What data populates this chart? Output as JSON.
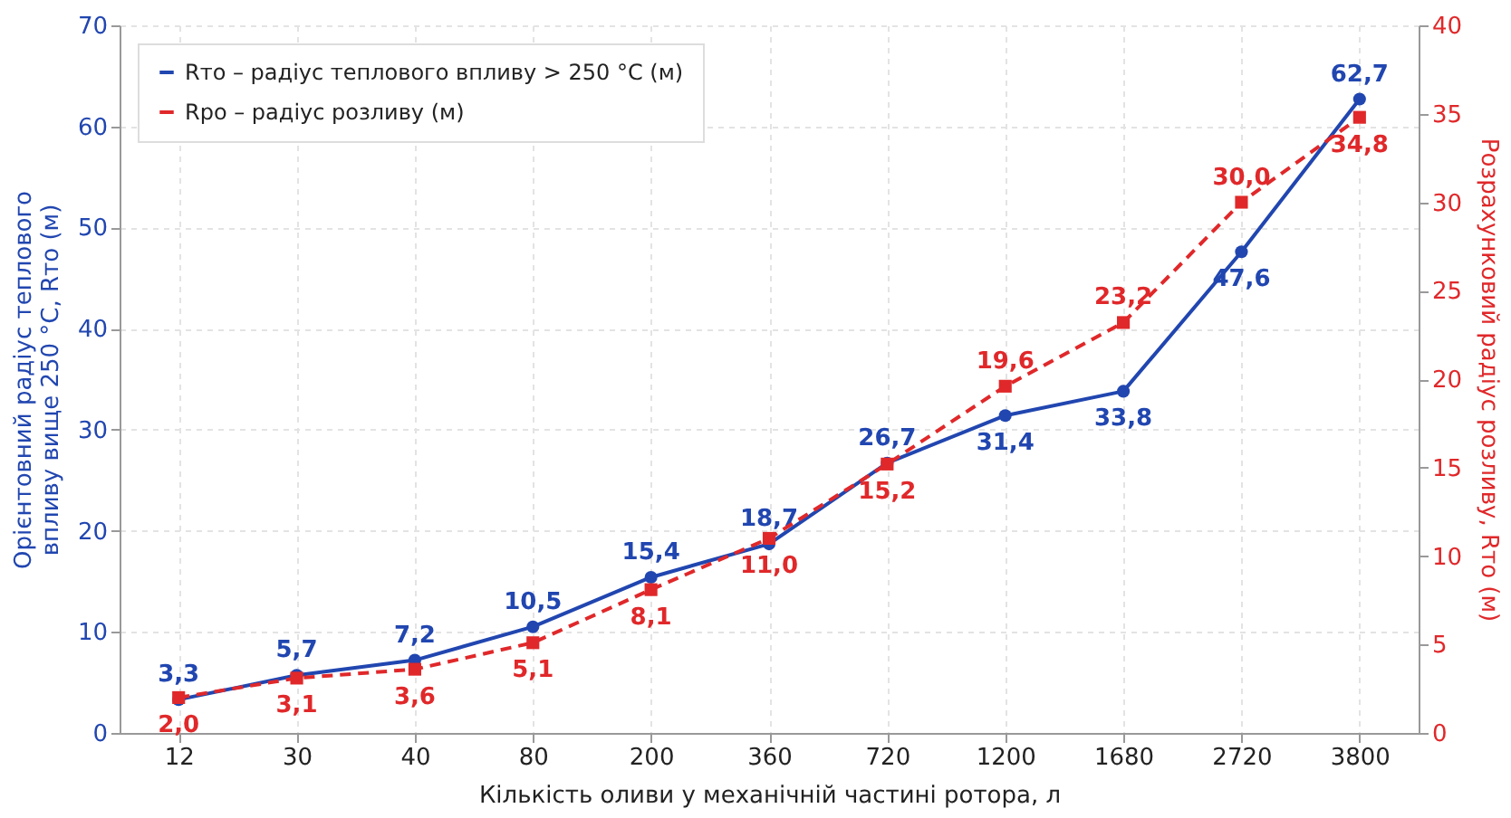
{
  "chart_data": {
    "type": "line",
    "categories": [
      "12",
      "30",
      "40",
      "80",
      "200",
      "360",
      "720",
      "1200",
      "1680",
      "2720",
      "3800"
    ],
    "series": [
      {
        "name": "Rто – радіус теплового впливу > 250 °C (м)",
        "color": "#2146b0",
        "marker": "circle",
        "line_style": "solid",
        "values": [
          3.3,
          5.7,
          7.2,
          10.5,
          15.4,
          18.7,
          26.7,
          31.4,
          33.8,
          47.6,
          62.7
        ],
        "value_labels": [
          "3,3",
          "5,7",
          "7,2",
          "10,5",
          "15,4",
          "18,7",
          "26,7",
          "31,4",
          "33,8",
          "47,6",
          "62,7"
        ]
      },
      {
        "name": "Rро – радіус розливу (м)",
        "color": "#e0282a",
        "marker": "square",
        "line_style": "dashed",
        "axis": "y2",
        "values": [
          2.0,
          3.1,
          3.6,
          5.1,
          8.1,
          11.0,
          15.2,
          19.6,
          23.2,
          30.0,
          34.8
        ],
        "value_labels": [
          "2,0",
          "3,1",
          "3,6",
          "5,1",
          "8,1",
          "11,0",
          "15,2",
          "19,6",
          "23,2",
          "30,0",
          "34,8"
        ]
      }
    ],
    "xlabel": "Кількість оливи у механічній частині ротора, л",
    "ylabel": "Орієнтовний радіус теплового впливу вище 250 °C, Rто (м)",
    "y2label": "Розрахунковий радіус розливу, Rто (м)",
    "ylim": [
      0,
      70
    ],
    "yticks": [
      0,
      10,
      20,
      30,
      40,
      50,
      60,
      70
    ],
    "y2lim": [
      0,
      40
    ],
    "y2ticks": [
      0,
      5,
      10,
      15,
      20,
      25,
      30,
      35,
      40
    ],
    "grid": true,
    "legend": "top left"
  }
}
